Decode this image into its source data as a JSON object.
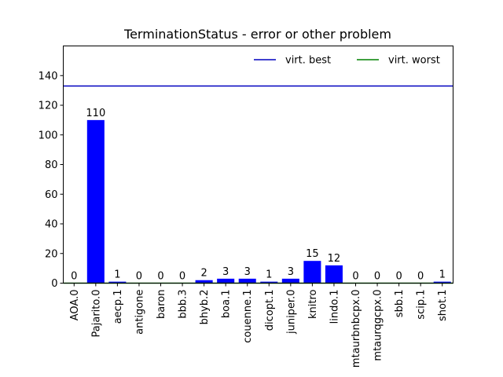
{
  "chart_data": {
    "type": "bar",
    "title": "TerminationStatus - error or other problem",
    "xlabel": "",
    "ylabel": "",
    "categories": [
      "AOA.0",
      "Pajarito.0",
      "aecp.1",
      "antigone",
      "baron",
      "bbb.3",
      "bhyb.2",
      "boa.1",
      "couenne.1",
      "dicopt.1",
      "juniper.0",
      "knitro",
      "lindo.1",
      "mtaurbnbcpx.0",
      "mtaurqgcpx.0",
      "sbb.1",
      "scip.1",
      "shot.1"
    ],
    "values": [
      0,
      110,
      1,
      0,
      0,
      0,
      2,
      3,
      3,
      1,
      3,
      15,
      12,
      0,
      0,
      0,
      0,
      1
    ],
    "bar_color": "#0000ff",
    "ylim": [
      0,
      160
    ],
    "yticks": [
      0,
      20,
      40,
      60,
      80,
      100,
      120,
      140
    ],
    "reference_lines": [
      {
        "name": "virt. best",
        "value": 133,
        "color": "#0000bf"
      },
      {
        "name": "virt. worst",
        "value": 0,
        "color": "#008000"
      }
    ],
    "legend": {
      "placement": "top-right",
      "entries": [
        "virt. best",
        "virt. worst"
      ]
    },
    "grid": false
  }
}
